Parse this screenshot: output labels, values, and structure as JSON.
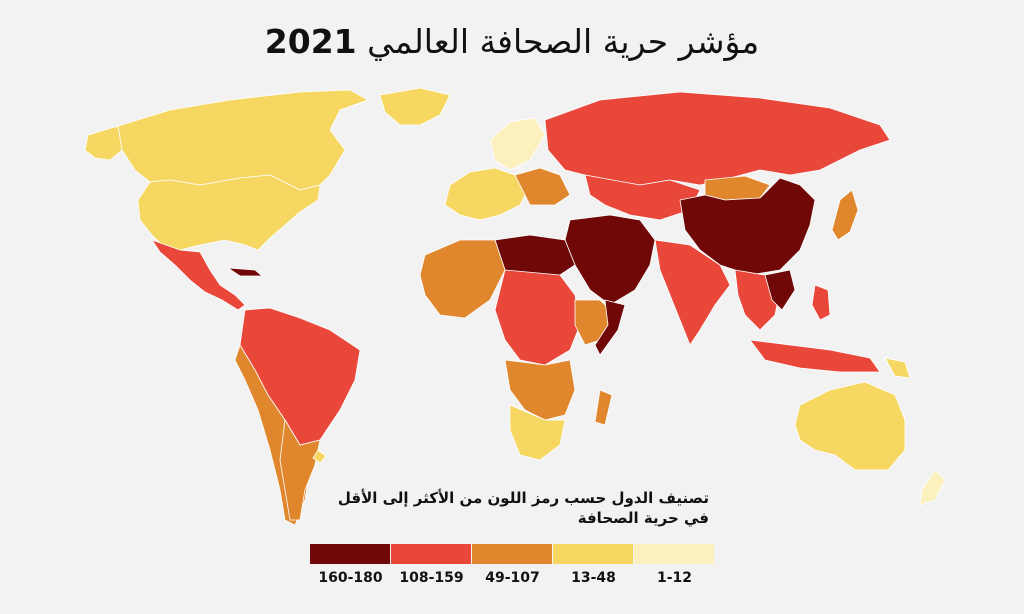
{
  "title": {
    "text": "مؤشر حرية الصحافة العالمي",
    "year": "2021"
  },
  "legend": {
    "title_line1": "تصنيف الدول حسب رمز  اللون من الأكثر إلى الأقل",
    "title_line2": "في حرية الصحافة",
    "items": [
      {
        "label": "1-12",
        "color": "#fdf0bf"
      },
      {
        "label": "13-48",
        "color": "#f5d762"
      },
      {
        "label": "49-107",
        "color": "#e0872e"
      },
      {
        "label": "108-159",
        "color": "#e8473a"
      },
      {
        "label": "160-180",
        "color": "#700808"
      }
    ]
  },
  "colors": {
    "background": "#f2f2f2",
    "very_good": "#fdf0bf",
    "good": "#f5d762",
    "problematic": "#e0872e",
    "difficult": "#e8473a",
    "very_serious": "#700808"
  }
}
